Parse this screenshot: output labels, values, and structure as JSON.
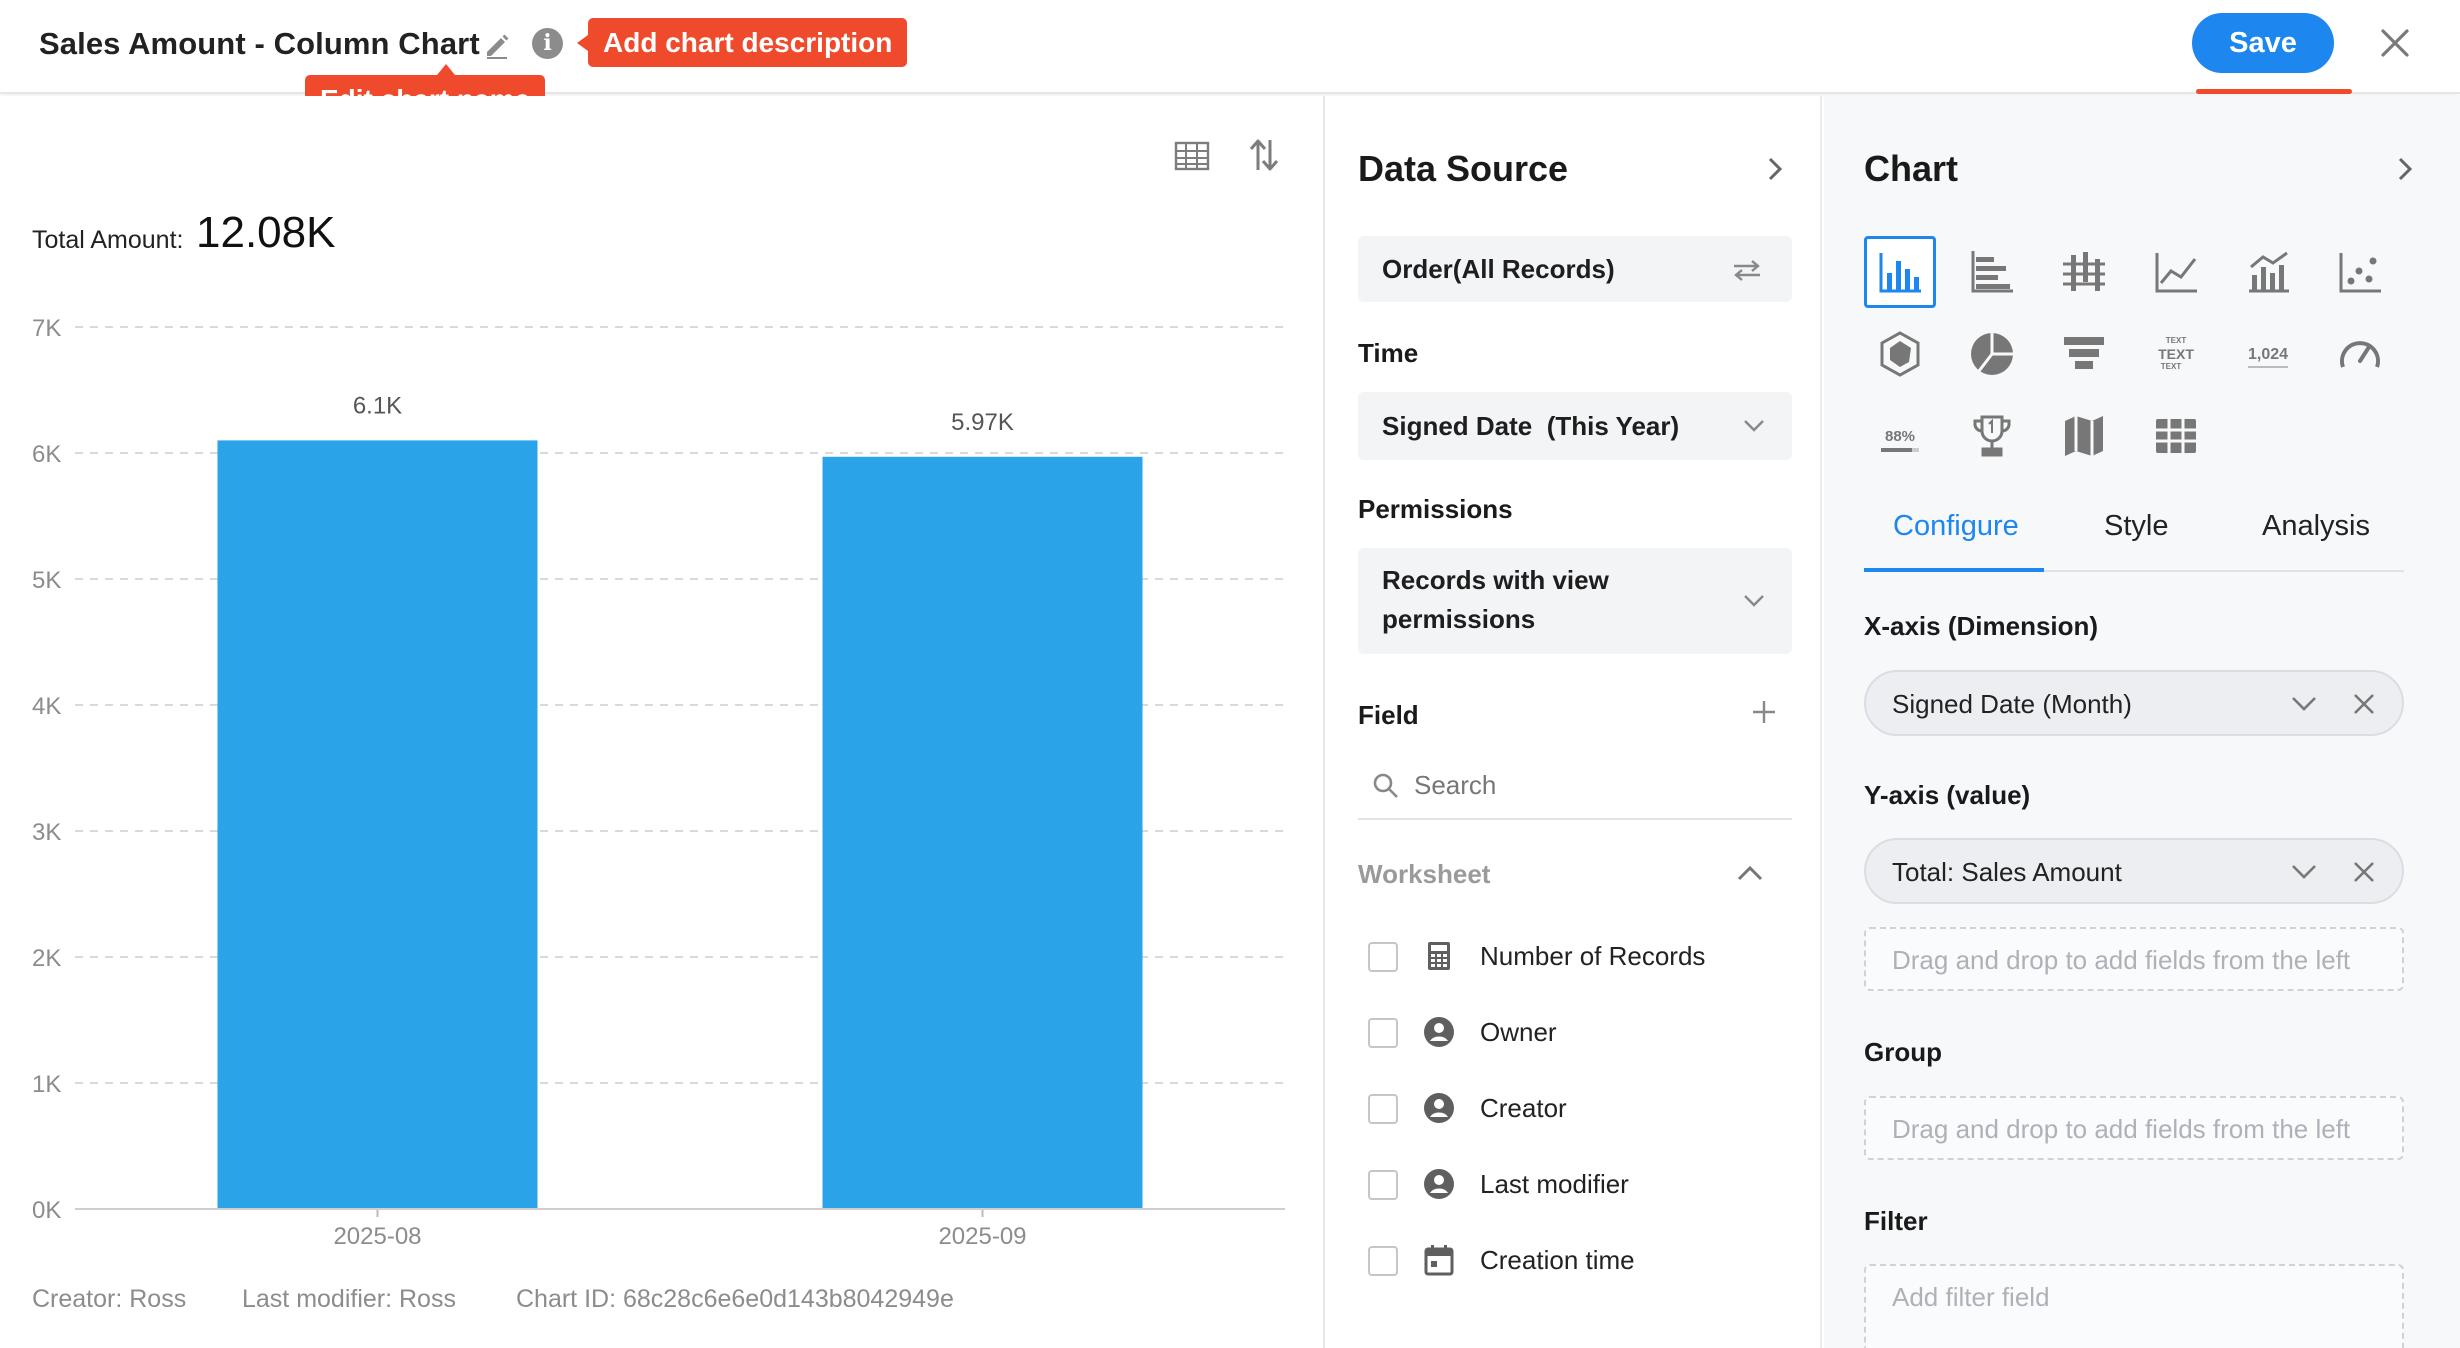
{
  "header": {
    "title": "Sales Amount - Column Chart",
    "callout_description": "Add chart description",
    "callout_name": "Edit chart name",
    "save_label": "Save"
  },
  "chart_panel": {
    "total_label": "Total Amount:",
    "total_value": "12.08K",
    "footer_creator": "Creator: Ross",
    "footer_modifier": "Last modifier: Ross",
    "footer_chart_id": "Chart ID: 68c28c6e6e0d143b8042949e"
  },
  "chart_data": {
    "type": "bar",
    "categories": [
      "2025-08",
      "2025-09"
    ],
    "values": [
      6100,
      5970
    ],
    "data_labels": [
      "6.1K",
      "5.97K"
    ],
    "ylim": [
      0,
      7000
    ],
    "yticks": [
      0,
      1000,
      2000,
      3000,
      4000,
      5000,
      6000,
      7000
    ],
    "ytick_labels": [
      "0K",
      "1K",
      "2K",
      "3K",
      "4K",
      "5K",
      "6K",
      "7K"
    ],
    "bar_color": "#2aa3e8",
    "grid": true
  },
  "data_source": {
    "title": "Data Source",
    "source": "Order(All Records)",
    "time_label": "Time",
    "time_value": "Signed Date  (This Year)",
    "permissions_label": "Permissions",
    "permissions_value_line1": "Records with view",
    "permissions_value_line2": "permissions",
    "field_label": "Field",
    "search_placeholder": "Search",
    "worksheet_label": "Worksheet",
    "fields": [
      {
        "label": "Number of Records",
        "icon": "calculator-icon"
      },
      {
        "label": "Owner",
        "icon": "person-icon"
      },
      {
        "label": "Creator",
        "icon": "person-icon"
      },
      {
        "label": "Last modifier",
        "icon": "person-icon"
      },
      {
        "label": "Creation time",
        "icon": "calendar-icon"
      }
    ]
  },
  "config": {
    "title": "Chart",
    "chart_types": [
      "column-chart-icon",
      "bar-chart-icon",
      "stacked-bar-icon",
      "line-chart-icon",
      "combo-chart-icon",
      "scatter-chart-icon",
      "radar-chart-icon",
      "pie-chart-icon",
      "funnel-chart-icon",
      "word-cloud-icon",
      "number-card-icon",
      "gauge-icon",
      "progress-icon",
      "ranking-icon",
      "map-icon",
      "pivot-table-icon"
    ],
    "word_cloud_text": "TEXT",
    "number_card_text": "1,024",
    "progress_text": "88%",
    "tabs": [
      "Configure",
      "Style",
      "Analysis"
    ],
    "x_axis_label": "X-axis (Dimension)",
    "x_axis_value": "Signed Date (Month)",
    "y_axis_label": "Y-axis (value)",
    "y_axis_value": "Total: Sales Amount",
    "drop_hint": "Drag and drop to add fields from the left",
    "group_label": "Group",
    "filter_label": "Filter",
    "filter_placeholder": "Add filter field"
  },
  "colors": {
    "accent": "#1e86ef",
    "callout": "#f04a2c",
    "bar": "#2aa3e8"
  }
}
